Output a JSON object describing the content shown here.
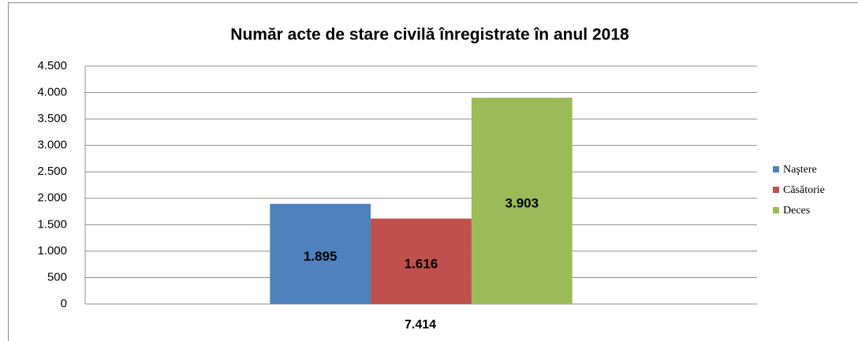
{
  "chart_data": {
    "type": "bar",
    "title": "Număr acte de stare civilă înregistrate în anul 2018",
    "categories": [
      "7.414"
    ],
    "series": [
      {
        "name": "Naştere",
        "color": "#4f81bd",
        "values": [
          1895
        ],
        "value_labels": [
          "1.895"
        ]
      },
      {
        "name": "Căsătorie",
        "color": "#c0504d",
        "values": [
          1616
        ],
        "value_labels": [
          "1.616"
        ]
      },
      {
        "name": "Deces",
        "color": "#9bbb59",
        "values": [
          3903
        ],
        "value_labels": [
          "3.903"
        ]
      }
    ],
    "ylim": [
      0,
      4500
    ],
    "yticks": [
      0,
      500,
      {
        "value": 1000,
        "label": "1.000"
      },
      {
        "value": 1500,
        "label": "1.500"
      },
      {
        "value": 2000,
        "label": "2.000"
      },
      {
        "value": 2500,
        "label": "2.500"
      },
      {
        "value": 3000,
        "label": "3.000"
      },
      {
        "value": 3500,
        "label": "3.500"
      },
      {
        "value": 4000,
        "label": "4.000"
      },
      {
        "value": 4500,
        "label": "4.500"
      }
    ],
    "grid": true,
    "legend": "right"
  }
}
